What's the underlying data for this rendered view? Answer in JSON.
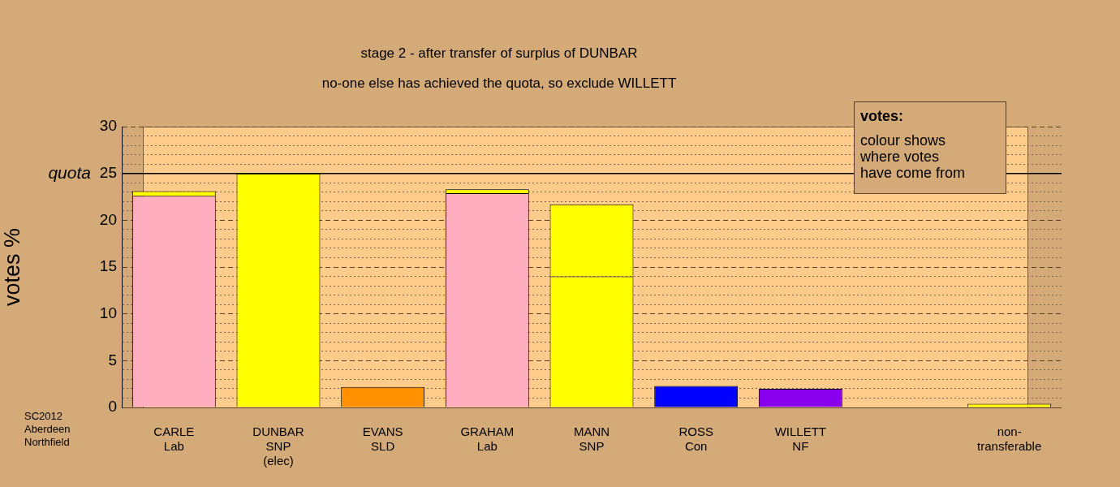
{
  "chart_data": {
    "type": "bar",
    "stacked": true,
    "title": "stage 2 - after transfer of surplus of DUNBAR",
    "subtitle": "no-one else has achieved the quota, so exclude WILLETT",
    "ylabel": "votes %",
    "legend_title": "votes:",
    "categories": [
      "CARLE\nLab",
      "DUNBAR\nSNP\n(elec)",
      "EVANS\nSLD",
      "GRAHAM\nLab",
      "MANN\nSNP",
      "ROSS\nCon",
      "WILLETT\nNF",
      null,
      "non-\ntransferable"
    ],
    "series": [
      {
        "color": "#ffaec0",
        "values": [
          22.6,
          null,
          null,
          22.9,
          null,
          null,
          null,
          null,
          null
        ]
      },
      {
        "color": "#ffff00",
        "values": [
          null,
          25,
          null,
          null,
          14.0,
          null,
          null,
          null,
          null
        ]
      },
      {
        "color": "#ff9000",
        "values": [
          null,
          null,
          2.2,
          null,
          null,
          null,
          null,
          null,
          null
        ]
      },
      {
        "color": "#0000ff",
        "values": [
          null,
          null,
          null,
          null,
          null,
          2.3,
          null,
          null,
          null
        ]
      },
      {
        "color": "#8800ee",
        "values": [
          null,
          null,
          null,
          null,
          null,
          null,
          2.0,
          null,
          null
        ]
      },
      {
        "color": "#ffff00",
        "values": [
          0.5,
          null,
          null,
          0.4,
          7.7,
          null,
          null,
          null,
          0.4
        ]
      }
    ],
    "ylim": [
      0,
      30
    ],
    "yticks": [
      0,
      {
        "value": 1,
        "label": null
      },
      {
        "value": 2,
        "label": null
      },
      {
        "value": 3,
        "label": null
      },
      {
        "value": 4,
        "label": null
      },
      5,
      {
        "value": 6,
        "label": null
      },
      {
        "value": 7,
        "label": null
      },
      {
        "value": 8,
        "label": null
      },
      {
        "value": 9,
        "label": null
      },
      10,
      {
        "value": 11,
        "label": null
      },
      {
        "value": 12,
        "label": null
      },
      {
        "value": 13,
        "label": null
      },
      {
        "value": 14,
        "label": null
      },
      15,
      {
        "value": 16,
        "label": null
      },
      {
        "value": 17,
        "label": null
      },
      {
        "value": 18,
        "label": null
      },
      {
        "value": 19,
        "label": null
      },
      20,
      {
        "value": 21,
        "label": null
      },
      {
        "value": 22,
        "label": null
      },
      {
        "value": 23,
        "label": null
      },
      {
        "value": 24,
        "label": null
      },
      25,
      {
        "value": 26,
        "label": null
      },
      {
        "value": 27,
        "label": null
      },
      {
        "value": 28,
        "label": null
      },
      {
        "value": 29,
        "label": null
      },
      30
    ],
    "grid": "y",
    "ref_lines": [
      {
        "axis": "y",
        "value": 25,
        "label": "quota"
      }
    ],
    "annotations": [
      "SC2012\nAberdeen\nNorthfield",
      "colour shows\nwhere votes\nhave come from"
    ]
  }
}
